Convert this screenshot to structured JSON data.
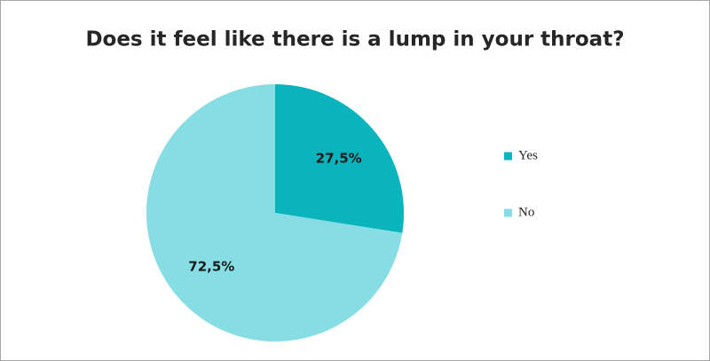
{
  "chart_data": {
    "type": "pie",
    "title": "Does it feel like there is a lump in your throat?",
    "categories": [
      "Yes",
      "No"
    ],
    "values": [
      27.5,
      72.5
    ],
    "value_labels": [
      "27,5%",
      "72,5%"
    ],
    "colors": [
      "#0ab4bd",
      "#86dde3"
    ],
    "legend": "right"
  }
}
